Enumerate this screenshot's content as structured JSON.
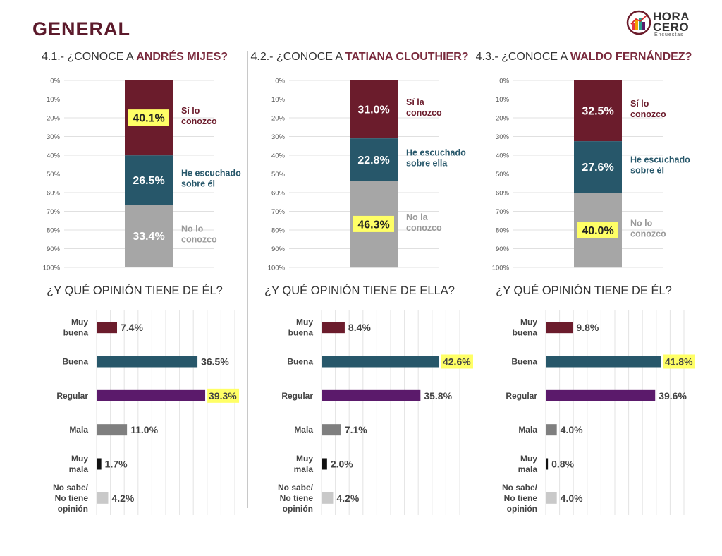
{
  "page": {
    "title": "GENERAL"
  },
  "logo": {
    "line1": "HORA",
    "line2": "CERO",
    "line3": "Encuestas"
  },
  "colors": {
    "si": "#6b1c2c",
    "escuchado": "#27576a",
    "no": "#a6a6a6",
    "muy_buena": "#6b1c2c",
    "buena": "#27576a",
    "regular": "#5b1a6b",
    "mala": "#7f7f7f",
    "muy_mala": "#111111",
    "no_sabe": "#c9c9c9",
    "highlight": "#ffff66"
  },
  "panels": [
    {
      "title_prefix": "4.1.- ¿CONOCE A ",
      "title_name": "ANDRÉS MIJES?",
      "opinion_title": "¿Y QUÉ OPINIÓN TIENE DE ÉL?"
    },
    {
      "title_prefix": "4.2.- ¿CONOCE A ",
      "title_name": "TATIANA CLOUTHIER?",
      "opinion_title": "¿Y QUÉ OPINIÓN TIENE DE ELLA?"
    },
    {
      "title_prefix": "4.3.- ¿CONOCE A ",
      "title_name": "WALDO FERNÁNDEZ?",
      "opinion_title": "¿Y QUÉ OPINIÓN TIENE DE ÉL?"
    }
  ],
  "chart_data": [
    {
      "type": "bar",
      "stacked": true,
      "title": "4.1.- ¿CONOCE A ANDRÉS MIJES?",
      "y_ticks": [
        "0%",
        "10%",
        "20%",
        "30%",
        "40%",
        "50%",
        "60%",
        "70%",
        "80%",
        "90%",
        "100%"
      ],
      "ylim": [
        0,
        100
      ],
      "segments": [
        {
          "label_lines": [
            "Sí lo",
            "conozco"
          ],
          "value": 40.1,
          "value_label": "40.1%",
          "color": "#6b1c2c",
          "highlight": true
        },
        {
          "label_lines": [
            "He escuchado",
            "sobre él"
          ],
          "value": 26.5,
          "value_label": "26.5%",
          "color": "#27576a",
          "highlight": false
        },
        {
          "label_lines": [
            "No lo",
            "conozco"
          ],
          "value": 33.4,
          "value_label": "33.4%",
          "color": "#a6a6a6",
          "highlight": false
        }
      ]
    },
    {
      "type": "bar",
      "stacked": true,
      "title": "4.2.- ¿CONOCE A TATIANA CLOUTHIER?",
      "y_ticks": [
        "0%",
        "10%",
        "20%",
        "30%",
        "40%",
        "50%",
        "60%",
        "70%",
        "80%",
        "90%",
        "100%"
      ],
      "ylim": [
        0,
        100
      ],
      "segments": [
        {
          "label_lines": [
            "Sí la",
            "conozco"
          ],
          "value": 31.0,
          "value_label": "31.0%",
          "color": "#6b1c2c",
          "highlight": false
        },
        {
          "label_lines": [
            "He escuchado",
            "sobre ella"
          ],
          "value": 22.8,
          "value_label": "22.8%",
          "color": "#27576a",
          "highlight": false
        },
        {
          "label_lines": [
            "No la",
            "conozco"
          ],
          "value": 46.3,
          "value_label": "46.3%",
          "color": "#a6a6a6",
          "highlight": true
        }
      ]
    },
    {
      "type": "bar",
      "stacked": true,
      "title": "4.3.- ¿CONOCE A WALDO FERNÁNDEZ?",
      "y_ticks": [
        "0%",
        "10%",
        "20%",
        "30%",
        "40%",
        "50%",
        "60%",
        "70%",
        "80%",
        "90%",
        "100%"
      ],
      "ylim": [
        0,
        100
      ],
      "segments": [
        {
          "label_lines": [
            "Sí lo",
            "conozco"
          ],
          "value": 32.5,
          "value_label": "32.5%",
          "color": "#6b1c2c",
          "highlight": false
        },
        {
          "label_lines": [
            "He escuchado",
            "sobre él"
          ],
          "value": 27.6,
          "value_label": "27.6%",
          "color": "#27576a",
          "highlight": false
        },
        {
          "label_lines": [
            "No lo",
            "conozco"
          ],
          "value": 40.0,
          "value_label": "40.0%",
          "color": "#a6a6a6",
          "highlight": true
        }
      ]
    },
    {
      "type": "bar",
      "orientation": "horizontal",
      "title": "¿Y QUÉ OPINIÓN TIENE DE ÉL?",
      "xlim": [
        0,
        50
      ],
      "categories": [
        [
          "Muy",
          "buena"
        ],
        [
          "Buena"
        ],
        [
          "Regular"
        ],
        [
          "Mala"
        ],
        [
          "Muy",
          "mala"
        ],
        [
          "No sabe/",
          "No tiene",
          "opinión"
        ]
      ],
      "values": [
        7.4,
        36.5,
        39.3,
        11.0,
        1.7,
        4.2
      ],
      "value_labels": [
        "7.4%",
        "36.5%",
        "39.3%",
        "11.0%",
        "1.7%",
        "4.2%"
      ],
      "colors": [
        "#6b1c2c",
        "#27576a",
        "#5b1a6b",
        "#7f7f7f",
        "#111111",
        "#c9c9c9"
      ],
      "highlight_index": 2
    },
    {
      "type": "bar",
      "orientation": "horizontal",
      "title": "¿Y QUÉ OPINIÓN TIENE DE ELLA?",
      "xlim": [
        0,
        50
      ],
      "categories": [
        [
          "Muy",
          "buena"
        ],
        [
          "Buena"
        ],
        [
          "Regular"
        ],
        [
          "Mala"
        ],
        [
          "Muy",
          "mala"
        ],
        [
          "No sabe/",
          "No tiene",
          "opinión"
        ]
      ],
      "values": [
        8.4,
        42.6,
        35.8,
        7.1,
        2.0,
        4.2
      ],
      "value_labels": [
        "8.4%",
        "42.6%",
        "35.8%",
        "7.1%",
        "2.0%",
        "4.2%"
      ],
      "colors": [
        "#6b1c2c",
        "#27576a",
        "#5b1a6b",
        "#7f7f7f",
        "#111111",
        "#c9c9c9"
      ],
      "highlight_index": 1
    },
    {
      "type": "bar",
      "orientation": "horizontal",
      "title": "¿Y QUÉ OPINIÓN TIENE DE ÉL?",
      "xlim": [
        0,
        50
      ],
      "categories": [
        [
          "Muy",
          "buena"
        ],
        [
          "Buena"
        ],
        [
          "Regular"
        ],
        [
          "Mala"
        ],
        [
          "Muy",
          "mala"
        ],
        [
          "No sabe/",
          "No tiene",
          "opinión"
        ]
      ],
      "values": [
        9.8,
        41.8,
        39.6,
        4.0,
        0.8,
        4.0
      ],
      "value_labels": [
        "9.8%",
        "41.8%",
        "39.6%",
        "4.0%",
        "0.8%",
        "4.0%"
      ],
      "colors": [
        "#6b1c2c",
        "#27576a",
        "#5b1a6b",
        "#7f7f7f",
        "#111111",
        "#c9c9c9"
      ],
      "highlight_index": 1
    }
  ]
}
